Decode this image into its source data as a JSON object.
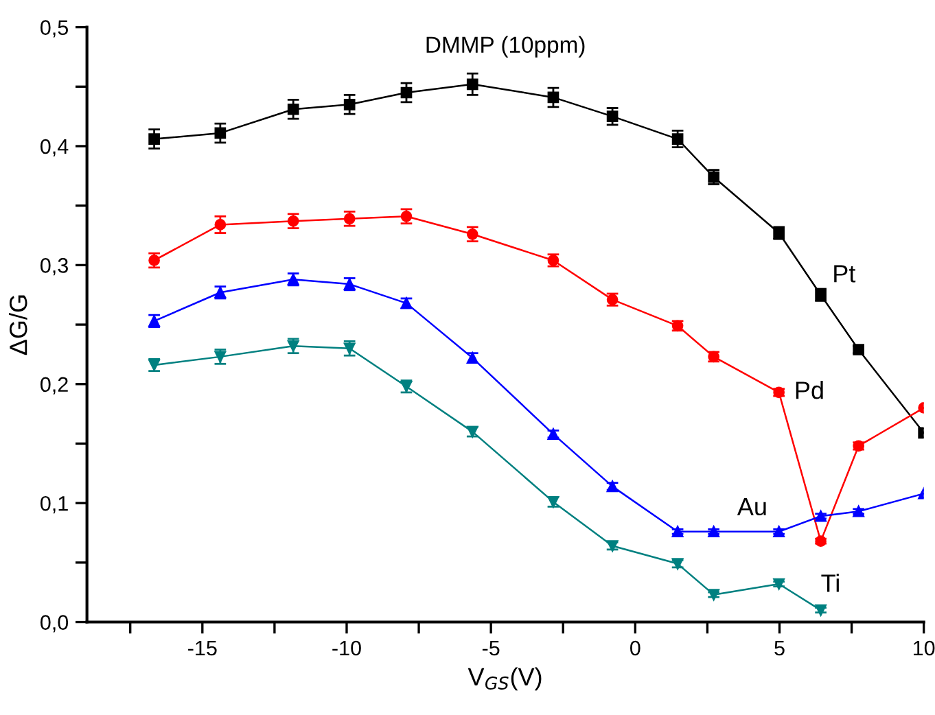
{
  "chart_data": {
    "type": "line",
    "title": "DMMP (10ppm)",
    "xlabel": "V$_{GS}$(V)",
    "ylabel": "ΔG/G",
    "xlim": [
      -19,
      10
    ],
    "ylim": [
      0,
      0.5
    ],
    "xticks": [
      {
        "value": -17.5,
        "label": null
      },
      -15,
      {
        "value": -12.5,
        "label": null
      },
      -10,
      {
        "value": -7.5,
        "label": null
      },
      -5,
      {
        "value": -2.5,
        "label": null
      },
      0,
      {
        "value": 2.5,
        "label": null
      },
      5,
      {
        "value": 7.5,
        "label": null
      },
      10
    ],
    "yticks": [
      {
        "value": 0,
        "label": "0,0"
      },
      {
        "value": 0.05,
        "label": null
      },
      {
        "value": 0.1,
        "label": "0,1"
      },
      {
        "value": 0.15,
        "label": null
      },
      {
        "value": 0.2,
        "label": "0,2"
      },
      {
        "value": 0.25,
        "label": null
      },
      {
        "value": 0.3,
        "label": "0,3"
      },
      {
        "value": 0.35,
        "label": null
      },
      {
        "value": 0.4,
        "label": "0,4"
      },
      {
        "value": 0.45,
        "label": null
      },
      {
        "value": 0.5,
        "label": "0,5"
      }
    ],
    "grid": false,
    "legend": false,
    "line_style": "solid",
    "series": [
      {
        "name": "Pt",
        "color": "#000000",
        "marker": "square",
        "x": [
          -16.67,
          -14.38,
          -11.85,
          -9.9,
          -7.93,
          -5.64,
          -2.84,
          -0.79,
          1.47,
          2.72,
          4.98,
          6.43,
          7.74,
          10
        ],
        "values": [
          0.406,
          0.411,
          0.431,
          0.435,
          0.445,
          0.452,
          0.441,
          0.425,
          0.406,
          0.374,
          0.327,
          0.275,
          0.229,
          0.159
        ],
        "errors": [
          0.008,
          0.008,
          0.008,
          0.008,
          0.008,
          0.009,
          0.008,
          0.007,
          0.007,
          0.006,
          0.005,
          0.005,
          0.003,
          null
        ]
      },
      {
        "name": "Pd",
        "color": "#ff0000",
        "marker": "circle",
        "x": [
          -16.67,
          -14.38,
          -11.85,
          -9.9,
          -7.93,
          -5.64,
          -2.84,
          -0.79,
          1.47,
          2.72,
          4.98,
          6.43,
          7.74,
          10
        ],
        "values": [
          0.304,
          0.334,
          0.337,
          0.339,
          0.341,
          0.326,
          0.304,
          0.271,
          0.249,
          0.223,
          0.193,
          0.068,
          0.148,
          0.18
        ],
        "errors": [
          0.006,
          0.007,
          0.006,
          0.006,
          0.006,
          0.006,
          0.005,
          0.005,
          0.004,
          0.004,
          0.003,
          0.002,
          0.003,
          null
        ]
      },
      {
        "name": "Au",
        "color": "#0000ff",
        "marker": "triangle",
        "x": [
          -16.67,
          -14.38,
          -11.85,
          -9.9,
          -7.93,
          -5.64,
          -2.84,
          -0.79,
          1.47,
          2.72,
          4.98,
          6.43,
          7.74,
          10
        ],
        "values": [
          0.253,
          0.277,
          0.288,
          0.284,
          0.268,
          0.222,
          0.158,
          0.114,
          0.076,
          0.076,
          0.076,
          0.089,
          0.093,
          0.108
        ],
        "errors": [
          0.005,
          0.005,
          0.005,
          0.005,
          0.004,
          0.004,
          0.003,
          0.003,
          0.002,
          0.002,
          0.002,
          0.002,
          0.002,
          null
        ]
      },
      {
        "name": "Ti",
        "color": "#008080",
        "marker": "triangle_down",
        "x": [
          -16.67,
          -14.38,
          -11.85,
          -9.9,
          -7.93,
          -5.64,
          -2.84,
          -0.79,
          1.47,
          2.72,
          4.98,
          6.43
        ],
        "values": [
          0.216,
          0.223,
          0.232,
          0.23,
          0.198,
          0.16,
          0.101,
          0.064,
          0.049,
          0.023,
          0.032,
          0.01
        ],
        "errors": [
          0.005,
          0.006,
          0.006,
          0.006,
          0.005,
          0.004,
          0.004,
          0.003,
          0.003,
          0.002,
          0.002,
          0.002
        ]
      }
    ]
  }
}
